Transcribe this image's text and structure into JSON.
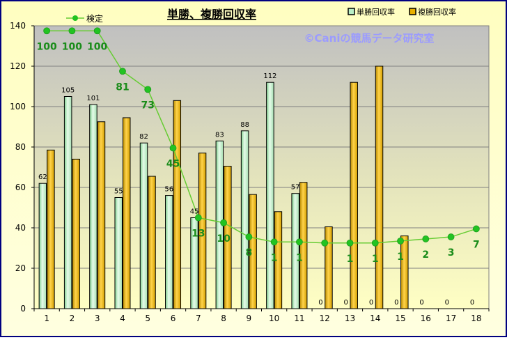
{
  "chart_data": {
    "type": "bar",
    "title": "単勝、複勝回収率",
    "watermark": "©Caniの競馬データ研究室",
    "categories": [
      "1",
      "2",
      "3",
      "4",
      "5",
      "6",
      "7",
      "8",
      "9",
      "10",
      "11",
      "12",
      "13",
      "14",
      "15",
      "16",
      "17",
      "18"
    ],
    "ylim": [
      0,
      140
    ],
    "yticks": [
      0,
      20,
      40,
      60,
      80,
      100,
      120,
      140
    ],
    "legend_position": "top-right",
    "series": [
      {
        "name": "単勝回収率",
        "kind": "bar",
        "color": "#b9efc6",
        "values": [
          62,
          105,
          101,
          55,
          82,
          56,
          45,
          83,
          88,
          112,
          57,
          0,
          0,
          0,
          0,
          0,
          0,
          0
        ],
        "labels": [
          "62",
          "105",
          "101",
          "55",
          "82",
          "56",
          "45",
          "83",
          "88",
          "112",
          "57",
          "0",
          "0",
          "0",
          "0",
          "0",
          "0",
          "0"
        ]
      },
      {
        "name": "複勝回収率",
        "kind": "bar",
        "color": "#e8b000",
        "values": [
          78.5,
          74,
          92.5,
          94.5,
          65.5,
          103,
          77,
          70.5,
          56.5,
          48,
          62.5,
          40.5,
          112,
          120,
          36,
          0,
          0,
          0
        ]
      },
      {
        "name": "検定",
        "kind": "line",
        "color": "#66cc33",
        "marker_color": "#22c322",
        "label_color": "#1a8c1a",
        "values": [
          137.5,
          137.5,
          137.5,
          117.5,
          108.5,
          79.5,
          45,
          42.5,
          35.5,
          33,
          33,
          32.5,
          32.5,
          32.5,
          33.5,
          34.5,
          35.5,
          39.5
        ],
        "labels": [
          "100",
          "100",
          "100",
          "81",
          "73",
          "45",
          "13",
          "10",
          "8",
          "1",
          "1",
          "",
          "1",
          "1",
          "1",
          "2",
          "3",
          "7"
        ]
      }
    ]
  },
  "colors": {
    "frame": "#000080",
    "title_bg": "#fffec8",
    "plot_top": "#c0c0c0",
    "plot_bottom": "#ffffc0",
    "watermark": "#9b9bff"
  }
}
